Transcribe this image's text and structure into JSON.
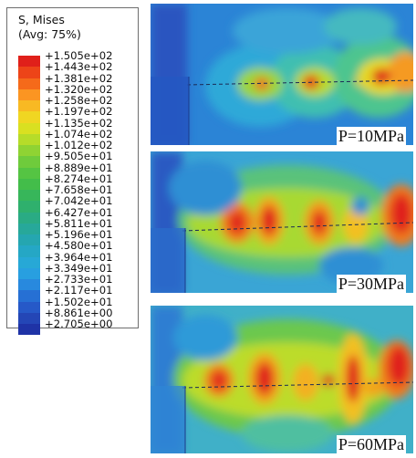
{
  "legend": {
    "title_line1": "S, Mises",
    "title_line2": "(Avg: 75%)",
    "values": [
      "+1.505e+02",
      "+1.443e+02",
      "+1.381e+02",
      "+1.320e+02",
      "+1.258e+02",
      "+1.197e+02",
      "+1.135e+02",
      "+1.074e+02",
      "+1.012e+02",
      "+9.505e+01",
      "+8.889e+01",
      "+8.274e+01",
      "+7.658e+01",
      "+7.042e+01",
      "+6.427e+01",
      "+5.811e+01",
      "+5.196e+01",
      "+4.580e+01",
      "+3.964e+01",
      "+3.349e+01",
      "+2.733e+01",
      "+2.117e+01",
      "+1.502e+01",
      "+8.861e+00",
      "+2.705e+00"
    ],
    "colors": [
      "#e0201a",
      "#ed4418",
      "#f56a1a",
      "#fb9522",
      "#f8b923",
      "#f0d622",
      "#d9e021",
      "#b6dc29",
      "#8fd333",
      "#6fcb3c",
      "#55c443",
      "#43bd4a",
      "#37b65a",
      "#2fb06d",
      "#2aab84",
      "#27a89a",
      "#25a6b0",
      "#25a7c5",
      "#27a8d6",
      "#289fe0",
      "#2889de",
      "#2670d4",
      "#2659c8",
      "#2446b6",
      "#1f33a6"
    ]
  },
  "plots": [
    {
      "pressure_label": "P=10MPa"
    },
    {
      "pressure_label": "P=30MPa"
    },
    {
      "pressure_label": "P=60MPa"
    }
  ]
}
